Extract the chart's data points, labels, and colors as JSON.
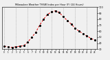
{
  "hours": [
    0,
    1,
    2,
    3,
    4,
    5,
    6,
    7,
    8,
    9,
    10,
    11,
    12,
    13,
    14,
    15,
    16,
    17,
    18,
    19,
    20,
    21,
    22,
    23
  ],
  "values": [
    35,
    34,
    33,
    34,
    35,
    36,
    42,
    50,
    58,
    70,
    80,
    88,
    92,
    94,
    91,
    84,
    78,
    72,
    65,
    60,
    56,
    52,
    48,
    45
  ],
  "line_color": "#dd0000",
  "marker_color": "#000000",
  "bg_color": "#f0f0f0",
  "plot_bg_color": "#f0f0f0",
  "grid_color": "#888888",
  "title": "Milwaukee Weather THSW Index per Hour (F) (24 Hours)",
  "ylim_min": 30,
  "ylim_max": 100,
  "ytick_values": [
    30,
    40,
    50,
    60,
    70,
    80,
    90,
    100
  ],
  "vgrid_hours": [
    0,
    3,
    6,
    9,
    12,
    15,
    18,
    21
  ]
}
